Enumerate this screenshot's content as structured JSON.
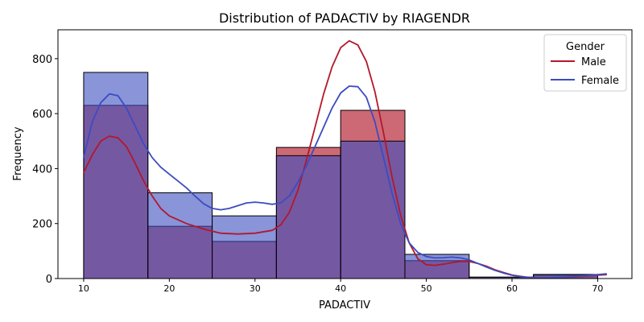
{
  "chart_data": {
    "type": "histogram",
    "title": "Distribution of PADACTIV by RIAGENDR",
    "xlabel": "PADACTIV",
    "ylabel": "Frequency",
    "xlim": [
      7,
      74
    ],
    "ylim": [
      0,
      905
    ],
    "x_ticks": [
      10,
      20,
      30,
      40,
      50,
      60,
      70
    ],
    "y_ticks": [
      0,
      200,
      400,
      600,
      800
    ],
    "bin_edges": [
      10,
      17.5,
      25,
      32.5,
      40,
      47.5,
      55,
      62.5,
      70
    ],
    "legend": {
      "title": "Gender",
      "position": "top-right"
    },
    "series": [
      {
        "name": "Male",
        "color": "#b2182b",
        "bar_fill": "rgba(178,24,43,0.65)",
        "counts": [
          630,
          190,
          135,
          477,
          612,
          65,
          5,
          12
        ],
        "kde": [
          [
            10,
            385
          ],
          [
            11,
            450
          ],
          [
            12,
            500
          ],
          [
            13,
            518
          ],
          [
            14,
            512
          ],
          [
            15,
            480
          ],
          [
            16,
            420
          ],
          [
            17,
            355
          ],
          [
            18,
            300
          ],
          [
            19,
            255
          ],
          [
            20,
            228
          ],
          [
            22,
            200
          ],
          [
            24,
            180
          ],
          [
            26,
            165
          ],
          [
            28,
            162
          ],
          [
            30,
            165
          ],
          [
            32,
            175
          ],
          [
            33,
            195
          ],
          [
            34,
            240
          ],
          [
            35,
            320
          ],
          [
            36,
            430
          ],
          [
            37,
            550
          ],
          [
            38,
            670
          ],
          [
            39,
            770
          ],
          [
            40,
            840
          ],
          [
            41,
            865
          ],
          [
            42,
            850
          ],
          [
            43,
            790
          ],
          [
            44,
            680
          ],
          [
            45,
            530
          ],
          [
            46,
            370
          ],
          [
            47,
            230
          ],
          [
            48,
            130
          ],
          [
            49,
            72
          ],
          [
            50,
            50
          ],
          [
            51,
            48
          ],
          [
            52,
            52
          ],
          [
            53,
            58
          ],
          [
            54,
            62
          ],
          [
            55,
            62
          ],
          [
            56,
            55
          ],
          [
            57,
            45
          ],
          [
            58,
            32
          ],
          [
            59,
            22
          ],
          [
            60,
            13
          ],
          [
            61,
            8
          ],
          [
            62,
            4
          ],
          [
            63,
            2
          ],
          [
            64,
            2
          ],
          [
            66,
            4
          ],
          [
            68,
            7
          ],
          [
            70,
            12
          ],
          [
            71,
            14
          ]
        ]
      },
      {
        "name": "Female",
        "color": "#3b4cc0",
        "bar_fill": "rgba(59,76,192,0.6)",
        "counts": [
          750,
          312,
          228,
          447,
          500,
          88,
          5,
          15
        ],
        "kde": [
          [
            10,
            440
          ],
          [
            11,
            570
          ],
          [
            12,
            640
          ],
          [
            13,
            672
          ],
          [
            14,
            665
          ],
          [
            15,
            620
          ],
          [
            16,
            555
          ],
          [
            17,
            490
          ],
          [
            18,
            440
          ],
          [
            19,
            405
          ],
          [
            20,
            380
          ],
          [
            21,
            355
          ],
          [
            22,
            330
          ],
          [
            23,
            300
          ],
          [
            24,
            272
          ],
          [
            25,
            255
          ],
          [
            26,
            250
          ],
          [
            27,
            255
          ],
          [
            28,
            265
          ],
          [
            29,
            275
          ],
          [
            30,
            278
          ],
          [
            31,
            275
          ],
          [
            32,
            270
          ],
          [
            33,
            275
          ],
          [
            34,
            300
          ],
          [
            35,
            350
          ],
          [
            36,
            410
          ],
          [
            37,
            480
          ],
          [
            38,
            550
          ],
          [
            39,
            620
          ],
          [
            40,
            675
          ],
          [
            41,
            700
          ],
          [
            42,
            698
          ],
          [
            43,
            660
          ],
          [
            44,
            570
          ],
          [
            45,
            440
          ],
          [
            46,
            310
          ],
          [
            47,
            200
          ],
          [
            48,
            130
          ],
          [
            49,
            95
          ],
          [
            50,
            80
          ],
          [
            51,
            75
          ],
          [
            52,
            76
          ],
          [
            53,
            78
          ],
          [
            54,
            75
          ],
          [
            55,
            68
          ],
          [
            56,
            55
          ],
          [
            57,
            42
          ],
          [
            58,
            30
          ],
          [
            59,
            20
          ],
          [
            60,
            12
          ],
          [
            61,
            7
          ],
          [
            62,
            4
          ],
          [
            63,
            2
          ],
          [
            64,
            2
          ],
          [
            66,
            5
          ],
          [
            68,
            9
          ],
          [
            70,
            14
          ],
          [
            71,
            17
          ]
        ]
      }
    ]
  }
}
